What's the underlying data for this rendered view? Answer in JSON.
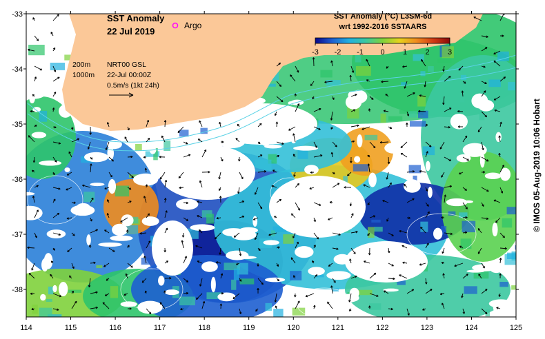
{
  "title": {
    "line1": "SST Anomaly",
    "line2": "22 Jul 2019"
  },
  "argo_label": "Argo",
  "legend": {
    "title_line1": "SST Anomaly (°C) L3SM-6d",
    "title_line2": "wrt 1992-2016 SSTAARS",
    "ticks": [
      "-3",
      "-2",
      "-1",
      "0",
      "1",
      "2",
      "3"
    ],
    "colors": [
      "#08088a",
      "#1e5fd0",
      "#21b0e0",
      "#3cc8a0",
      "#7fd23c",
      "#e6d21e",
      "#f08c1e",
      "#d23c14",
      "#8a0a0a"
    ]
  },
  "info": {
    "isobath1": "200m",
    "isobath2": "1000m",
    "product": "NRT00 GSL",
    "time": "22-Jul 00:00Z",
    "scale": "0.5m/s (1kt 24h)"
  },
  "credit": "© IMOS 05-Aug-2019 10:06 Hobart",
  "axes": {
    "x_ticks": [
      "114",
      "115",
      "116",
      "117",
      "118",
      "119",
      "120",
      "121",
      "122",
      "123",
      "124",
      "125"
    ],
    "y_ticks": [
      "-33",
      "-34",
      "-35",
      "-36",
      "-37",
      "-38"
    ],
    "lon_range": [
      114,
      125
    ],
    "lat_range": [
      -33,
      -38.5
    ]
  },
  "land_color": "#fbc898",
  "argo_color": "#ff00ff"
}
